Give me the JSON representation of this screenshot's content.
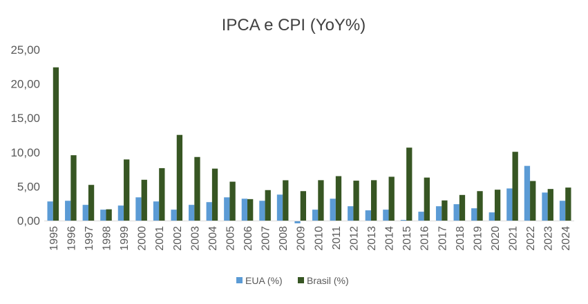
{
  "chart_data": {
    "type": "bar",
    "title": "IPCA e CPI (YoY%)",
    "xlabel": "",
    "ylabel": "",
    "ylim": [
      0,
      25
    ],
    "yticks": [
      "0,00",
      "5,00",
      "10,00",
      "15,00",
      "20,00",
      "25,00"
    ],
    "ytick_values": [
      0,
      5,
      10,
      15,
      20,
      25
    ],
    "grid": false,
    "legend_position": "bottom",
    "categories": [
      "1995",
      "1996",
      "1997",
      "1998",
      "1999",
      "2000",
      "2001",
      "2002",
      "2003",
      "2004",
      "2005",
      "2006",
      "2007",
      "2008",
      "2009",
      "2010",
      "2011",
      "2012",
      "2013",
      "2014",
      "2015",
      "2016",
      "2017",
      "2018",
      "2019",
      "2020",
      "2021",
      "2022",
      "2023",
      "2024"
    ],
    "series": [
      {
        "name": "EUA (%)",
        "color": "#5b9bd5",
        "values": [
          2.8,
          2.9,
          2.3,
          1.6,
          2.2,
          3.4,
          2.8,
          1.6,
          2.3,
          2.7,
          3.4,
          3.2,
          2.9,
          3.8,
          -0.4,
          1.6,
          3.2,
          2.1,
          1.5,
          1.6,
          0.1,
          1.3,
          2.1,
          2.4,
          1.8,
          1.2,
          4.7,
          8.0,
          4.1,
          2.9
        ]
      },
      {
        "name": "Brasil (%)",
        "color": "#375623",
        "values": [
          22.41,
          9.56,
          5.22,
          1.65,
          8.94,
          5.97,
          7.67,
          12.53,
          9.3,
          7.6,
          5.69,
          3.14,
          4.46,
          5.9,
          4.31,
          5.91,
          6.5,
          5.84,
          5.91,
          6.41,
          10.67,
          6.29,
          2.95,
          3.75,
          4.31,
          4.52,
          10.06,
          5.79,
          4.62,
          4.83
        ]
      }
    ]
  }
}
